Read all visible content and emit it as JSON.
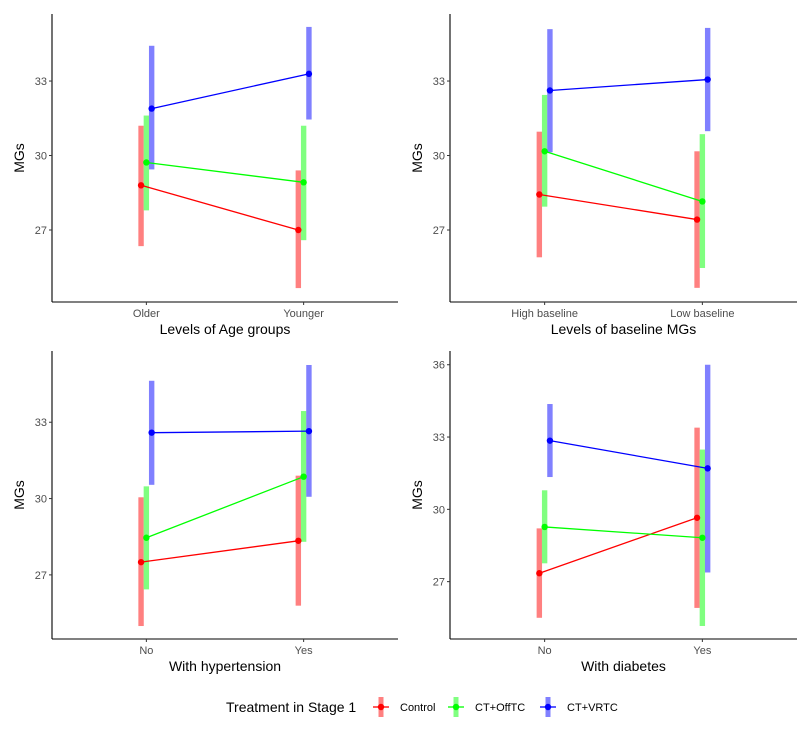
{
  "chart_data": [
    {
      "type": "line",
      "xlabel": "Levels of Age groups",
      "ylabel": "MGs",
      "categories": [
        "Older",
        "Younger"
      ],
      "yticks": [
        27,
        30,
        33
      ],
      "ylim": [
        24.1,
        35.7
      ],
      "series": [
        {
          "name": "Control",
          "values": [
            28.8,
            27.0
          ],
          "lower": [
            26.35,
            24.66
          ],
          "upper": [
            31.2,
            29.4
          ]
        },
        {
          "name": "CT+OffTC",
          "values": [
            29.72,
            28.92
          ],
          "lower": [
            27.79,
            26.59
          ],
          "upper": [
            31.61,
            31.2
          ]
        },
        {
          "name": "CT+VRTC",
          "values": [
            31.89,
            33.29
          ],
          "lower": [
            29.44,
            31.45
          ],
          "upper": [
            34.42,
            35.18
          ]
        }
      ]
    },
    {
      "type": "line",
      "xlabel": "Levels of baseline MGs",
      "ylabel": "MGs",
      "categories": [
        "High baseline",
        "Low baseline"
      ],
      "yticks": [
        27,
        30,
        33
      ],
      "ylim": [
        24.1,
        35.7
      ],
      "series": [
        {
          "name": "Control",
          "values": [
            28.43,
            27.42
          ],
          "lower": [
            25.9,
            24.67
          ],
          "upper": [
            30.96,
            30.17
          ]
        },
        {
          "name": "CT+OffTC",
          "values": [
            30.17,
            28.15
          ],
          "lower": [
            27.94,
            25.47
          ],
          "upper": [
            32.44,
            30.86
          ]
        },
        {
          "name": "CT+VRTC",
          "values": [
            32.62,
            33.06
          ],
          "lower": [
            30.13,
            30.98
          ],
          "upper": [
            35.09,
            35.14
          ]
        }
      ]
    },
    {
      "type": "line",
      "xlabel": "With hypertension",
      "ylabel": "MGs",
      "categories": [
        "No",
        "Yes"
      ],
      "yticks": [
        27,
        30,
        33
      ],
      "ylim": [
        24.48,
        35.8
      ],
      "series": [
        {
          "name": "Control",
          "values": [
            27.5,
            28.34
          ],
          "lower": [
            24.99,
            25.79
          ],
          "upper": [
            30.05,
            30.9
          ]
        },
        {
          "name": "CT+OffTC",
          "values": [
            28.46,
            30.86
          ],
          "lower": [
            26.43,
            28.3
          ],
          "upper": [
            30.48,
            33.44
          ]
        },
        {
          "name": "CT+VRTC",
          "values": [
            32.59,
            32.65
          ],
          "lower": [
            30.54,
            30.07
          ],
          "upper": [
            34.63,
            35.25
          ]
        }
      ]
    },
    {
      "type": "line",
      "xlabel": "With diabetes",
      "ylabel": "MGs",
      "categories": [
        "No",
        "Yes"
      ],
      "yticks": [
        27,
        30,
        33,
        36
      ],
      "ylim": [
        24.62,
        36.57
      ],
      "series": [
        {
          "name": "Control",
          "values": [
            27.35,
            29.65
          ],
          "lower": [
            25.5,
            25.91
          ],
          "upper": [
            29.21,
            33.39
          ]
        },
        {
          "name": "CT+OffTC",
          "values": [
            29.27,
            28.82
          ],
          "lower": [
            27.76,
            25.16
          ],
          "upper": [
            30.79,
            32.48
          ]
        },
        {
          "name": "CT+VRTC",
          "values": [
            32.85,
            31.7
          ],
          "lower": [
            31.34,
            27.38
          ],
          "upper": [
            34.37,
            36.0
          ]
        }
      ]
    }
  ],
  "legend": {
    "title": "Treatment in Stage 1",
    "position": "bottom",
    "items": [
      {
        "name": "Control",
        "color": "#ff0000",
        "band_color": "#ff8080"
      },
      {
        "name": "CT+OffTC",
        "color": "#00ff00",
        "band_color": "#80ff80"
      },
      {
        "name": "CT+VRTC",
        "color": "#0000ff",
        "band_color": "#8080ff"
      }
    ]
  }
}
